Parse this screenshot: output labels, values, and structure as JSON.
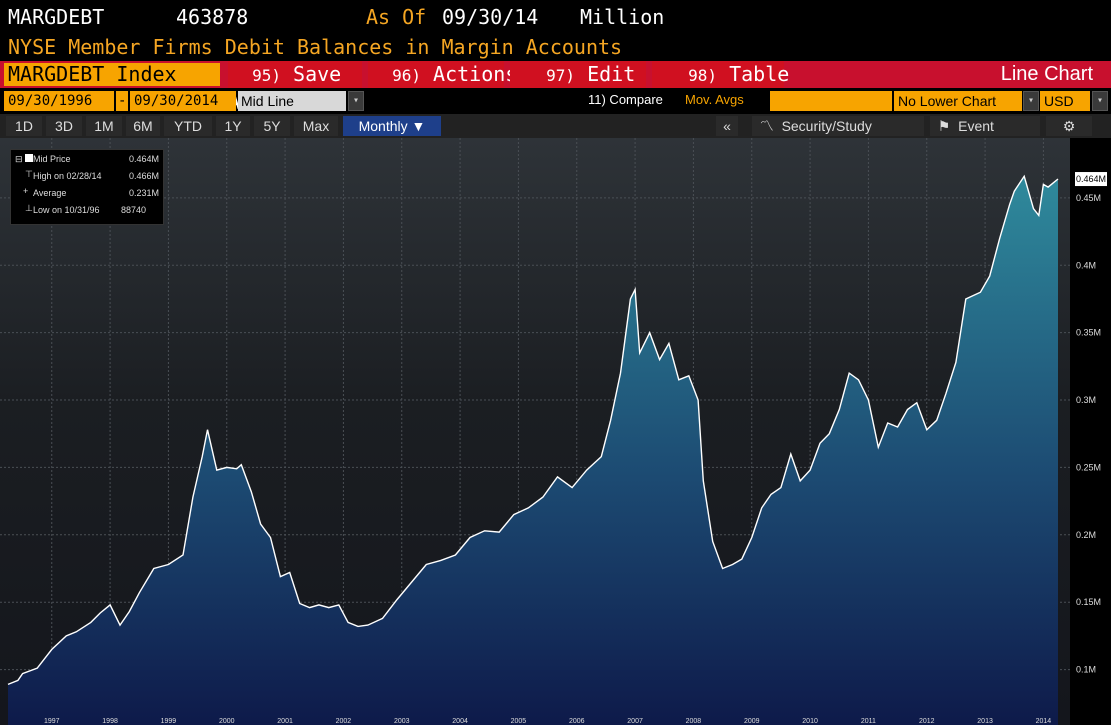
{
  "header": {
    "ticker": "MARGDEBT",
    "value": "463878",
    "as_of_label": "As Of",
    "as_of_date": "09/30/14",
    "unit": "Million",
    "description": "NYSE Member Firms Debit Balances in Margin Accounts"
  },
  "toolbar": {
    "index_name": "MARGDEBT Index",
    "save_num": "95)",
    "save_label": "Save As",
    "actions_num": "96)",
    "actions_label": "Actions",
    "edit_num": "97)",
    "edit_label": "Edit",
    "table_num": "98)",
    "table_label": "Table",
    "chart_type": "Line Chart"
  },
  "range": {
    "start": "09/30/1996",
    "sep": "-",
    "end": "09/30/2014",
    "mode": "Mid Line",
    "compare": "11) Compare",
    "mov_avgs": "Mov. Avgs",
    "lower_chart": "No Lower Chart",
    "currency": "USD"
  },
  "period_tabs": [
    "1D",
    "3D",
    "1M",
    "6M",
    "YTD",
    "1Y",
    "5Y",
    "Max"
  ],
  "frequency": "Monthly",
  "tools": {
    "collapse": "«",
    "security_study": "Security/Study",
    "event": "Event"
  },
  "legend": {
    "mid_label": "Mid Price",
    "mid_value": "0.464M",
    "high_label": "High on 02/28/14",
    "high_value": "0.466M",
    "avg_label": "Average",
    "avg_value": "0.231M",
    "low_label": "Low on 10/31/96",
    "low_value": "88740"
  },
  "last_value_tag": "0.464M",
  "colors": {
    "brand_red": "#d01020",
    "accent_orange": "#f7a400",
    "line_white": "#ffffff",
    "fill_teal": "#2a7c90"
  },
  "chart_data": {
    "type": "area",
    "ylim": [
      0.07,
      0.49
    ],
    "y_ticks": [
      "0.1M",
      "0.15M",
      "0.2M",
      "0.25M",
      "0.3M",
      "0.35M",
      "0.4M",
      "0.45M"
    ],
    "y_tick_values": [
      0.1,
      0.15,
      0.2,
      0.25,
      0.3,
      0.35,
      0.4,
      0.45
    ],
    "x_years": [
      "1997",
      "1998",
      "1999",
      "2000",
      "2001",
      "2002",
      "2003",
      "2004",
      "2005",
      "2006",
      "2007",
      "2008",
      "2009",
      "2010",
      "2011",
      "2012",
      "2013",
      "2014"
    ],
    "x_start": 1996.75,
    "x_end": 2014.75,
    "series": [
      {
        "points": [
          [
            1996.75,
            0.089
          ],
          [
            1996.92,
            0.092
          ],
          [
            1997.0,
            0.097
          ],
          [
            1997.25,
            0.101
          ],
          [
            1997.5,
            0.115
          ],
          [
            1997.75,
            0.125
          ],
          [
            1997.92,
            0.128
          ],
          [
            1998.17,
            0.135
          ],
          [
            1998.33,
            0.142
          ],
          [
            1998.5,
            0.148
          ],
          [
            1998.67,
            0.133
          ],
          [
            1998.83,
            0.143
          ],
          [
            1999.0,
            0.157
          ],
          [
            1999.25,
            0.175
          ],
          [
            1999.5,
            0.178
          ],
          [
            1999.75,
            0.185
          ],
          [
            1999.92,
            0.228
          ],
          [
            2000.08,
            0.258
          ],
          [
            2000.17,
            0.278
          ],
          [
            2000.33,
            0.248
          ],
          [
            2000.5,
            0.25
          ],
          [
            2000.67,
            0.249
          ],
          [
            2000.75,
            0.252
          ],
          [
            2000.92,
            0.232
          ],
          [
            2001.08,
            0.208
          ],
          [
            2001.25,
            0.198
          ],
          [
            2001.42,
            0.169
          ],
          [
            2001.58,
            0.172
          ],
          [
            2001.75,
            0.149
          ],
          [
            2001.92,
            0.146
          ],
          [
            2002.08,
            0.148
          ],
          [
            2002.25,
            0.146
          ],
          [
            2002.42,
            0.148
          ],
          [
            2002.58,
            0.135
          ],
          [
            2002.75,
            0.132
          ],
          [
            2002.92,
            0.133
          ],
          [
            2003.17,
            0.138
          ],
          [
            2003.42,
            0.152
          ],
          [
            2003.67,
            0.165
          ],
          [
            2003.92,
            0.178
          ],
          [
            2004.17,
            0.181
          ],
          [
            2004.42,
            0.185
          ],
          [
            2004.67,
            0.198
          ],
          [
            2004.92,
            0.203
          ],
          [
            2005.17,
            0.202
          ],
          [
            2005.42,
            0.215
          ],
          [
            2005.67,
            0.22
          ],
          [
            2005.92,
            0.228
          ],
          [
            2006.17,
            0.243
          ],
          [
            2006.42,
            0.235
          ],
          [
            2006.67,
            0.248
          ],
          [
            2006.92,
            0.258
          ],
          [
            2007.08,
            0.285
          ],
          [
            2007.25,
            0.32
          ],
          [
            2007.42,
            0.375
          ],
          [
            2007.5,
            0.382
          ],
          [
            2007.58,
            0.335
          ],
          [
            2007.75,
            0.35
          ],
          [
            2007.92,
            0.33
          ],
          [
            2008.08,
            0.342
          ],
          [
            2008.25,
            0.315
          ],
          [
            2008.42,
            0.318
          ],
          [
            2008.58,
            0.3
          ],
          [
            2008.67,
            0.24
          ],
          [
            2008.83,
            0.195
          ],
          [
            2009.0,
            0.175
          ],
          [
            2009.17,
            0.178
          ],
          [
            2009.33,
            0.182
          ],
          [
            2009.5,
            0.198
          ],
          [
            2009.67,
            0.22
          ],
          [
            2009.83,
            0.23
          ],
          [
            2010.0,
            0.235
          ],
          [
            2010.17,
            0.26
          ],
          [
            2010.33,
            0.24
          ],
          [
            2010.5,
            0.248
          ],
          [
            2010.67,
            0.268
          ],
          [
            2010.83,
            0.275
          ],
          [
            2011.0,
            0.293
          ],
          [
            2011.17,
            0.32
          ],
          [
            2011.33,
            0.315
          ],
          [
            2011.5,
            0.3
          ],
          [
            2011.67,
            0.265
          ],
          [
            2011.83,
            0.283
          ],
          [
            2012.0,
            0.28
          ],
          [
            2012.17,
            0.293
          ],
          [
            2012.33,
            0.298
          ],
          [
            2012.5,
            0.278
          ],
          [
            2012.67,
            0.285
          ],
          [
            2012.83,
            0.305
          ],
          [
            2013.0,
            0.328
          ],
          [
            2013.17,
            0.375
          ],
          [
            2013.42,
            0.38
          ],
          [
            2013.58,
            0.392
          ],
          [
            2013.75,
            0.42
          ],
          [
            2013.92,
            0.445
          ],
          [
            2014.0,
            0.455
          ],
          [
            2014.17,
            0.466
          ],
          [
            2014.33,
            0.442
          ],
          [
            2014.42,
            0.437
          ],
          [
            2014.5,
            0.46
          ],
          [
            2014.58,
            0.458
          ],
          [
            2014.75,
            0.464
          ]
        ]
      }
    ]
  }
}
